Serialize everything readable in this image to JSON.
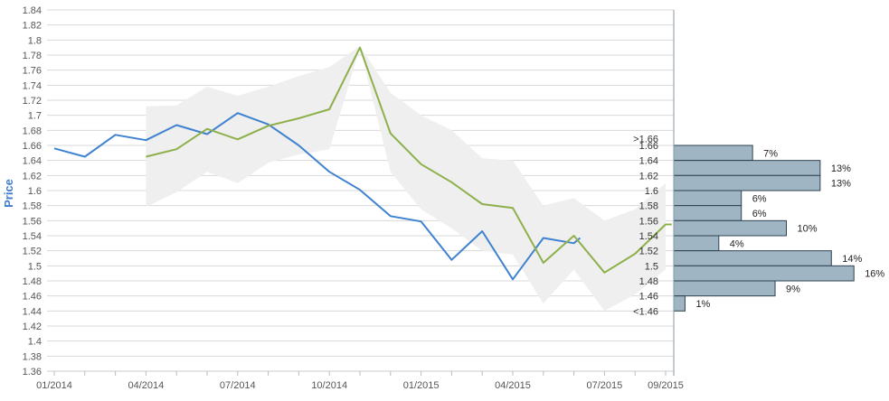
{
  "chart_data": {
    "type": "line",
    "ylabel": "Price",
    "xlabel": "",
    "ylim": [
      1.36,
      1.84
    ],
    "y_ticks": [
      "1.36",
      "1.38",
      "1.4",
      "1.42",
      "1.44",
      "1.46",
      "1.48",
      "1.5",
      "1.52",
      "1.54",
      "1.56",
      "1.58",
      "1.6",
      "1.62",
      "1.64",
      "1.66",
      "1.68",
      "1.7",
      "1.72",
      "1.74",
      "1.76",
      "1.78",
      "1.8",
      "1.82",
      "1.84"
    ],
    "x_ticks": [
      "01/2014",
      "04/2014",
      "07/2014",
      "10/2014",
      "01/2015",
      "04/2015",
      "07/2015",
      "09/2015"
    ],
    "x_tick_months": [
      0,
      3,
      6,
      9,
      12,
      15,
      18,
      20
    ],
    "grid": true,
    "colors": {
      "series_blue": "#3f82d0",
      "series_green": "#8db04a",
      "band": "#efefef",
      "hist_fill": "#9fb5c4",
      "hist_stroke": "#2f4250",
      "axis": "#8a9aa6"
    },
    "series": [
      {
        "key": "blue",
        "x_month": [
          0,
          1,
          2,
          3,
          4,
          5,
          6,
          7,
          8,
          9,
          10,
          11,
          12,
          13,
          14,
          15,
          16,
          17,
          17.2
        ],
        "values": [
          1.656,
          1.645,
          1.674,
          1.667,
          1.687,
          1.675,
          1.703,
          1.688,
          1.66,
          1.625,
          1.601,
          1.566,
          1.559,
          1.508,
          1.546,
          1.482,
          1.537,
          1.53,
          1.537
        ]
      },
      {
        "key": "green",
        "x_month": [
          3,
          4,
          5,
          6,
          7,
          8,
          9,
          10,
          11,
          12,
          13,
          14,
          15,
          16,
          17,
          18,
          19,
          20,
          20.2
        ],
        "values": [
          1.645,
          1.655,
          1.682,
          1.668,
          1.686,
          1.696,
          1.708,
          1.79,
          1.676,
          1.635,
          1.611,
          1.582,
          1.577,
          1.504,
          1.54,
          1.491,
          1.516,
          1.555,
          1.555
        ]
      }
    ],
    "band": {
      "x_month": [
        3,
        4,
        5,
        6,
        7,
        8,
        9,
        10,
        11,
        12,
        13,
        14,
        15,
        16,
        17,
        18,
        19,
        20
      ],
      "upper": [
        1.712,
        1.713,
        1.738,
        1.726,
        1.738,
        1.752,
        1.764,
        1.792,
        1.73,
        1.7,
        1.68,
        1.643,
        1.64,
        1.58,
        1.59,
        1.56,
        1.575,
        1.61
      ],
      "lower": [
        1.578,
        1.598,
        1.625,
        1.61,
        1.637,
        1.648,
        1.655,
        1.79,
        1.625,
        1.575,
        1.55,
        1.52,
        1.515,
        1.45,
        1.495,
        1.44,
        1.462,
        1.495
      ]
    },
    "histogram": {
      "labels": [
        ">1.66",
        "1.66",
        "1.64",
        "1.62",
        "1.6",
        "1.58",
        "1.56",
        "1.54",
        "1.52",
        "1.5",
        "1.48",
        "1.46",
        "<1.46"
      ],
      "bins": [
        {
          "low": 1.64,
          "high": 1.66,
          "percent": 7,
          "label": "7%"
        },
        {
          "low": 1.62,
          "high": 1.64,
          "percent": 13,
          "label": "13%"
        },
        {
          "low": 1.6,
          "high": 1.62,
          "percent": 13,
          "label": "13%"
        },
        {
          "low": 1.58,
          "high": 1.6,
          "percent": 6,
          "label": "6%"
        },
        {
          "low": 1.56,
          "high": 1.58,
          "percent": 6,
          "label": "6%"
        },
        {
          "low": 1.54,
          "high": 1.56,
          "percent": 10,
          "label": "10%"
        },
        {
          "low": 1.52,
          "high": 1.54,
          "percent": 4,
          "label": "4%"
        },
        {
          "low": 1.5,
          "high": 1.52,
          "percent": 14,
          "label": "14%"
        },
        {
          "low": 1.48,
          "high": 1.5,
          "percent": 16,
          "label": "16%"
        },
        {
          "low": 1.46,
          "high": 1.48,
          "percent": 9,
          "label": "9%"
        },
        {
          "low": 1.44,
          "high": 1.46,
          "percent": 1,
          "label": "1%"
        }
      ]
    }
  }
}
